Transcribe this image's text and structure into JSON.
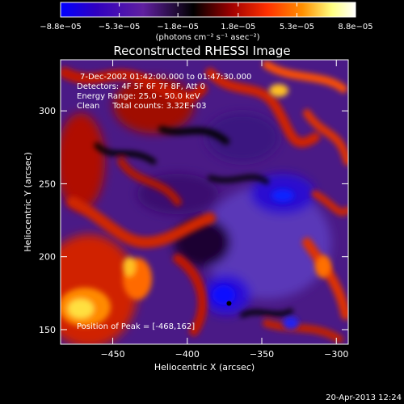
{
  "chart_data": {
    "type": "heatmap",
    "title": "Reconstructed RHESSI Image",
    "xlabel": "Heliocentric X (arcsec)",
    "ylabel": "Heliocentric Y (arcsec)",
    "xlim": [
      -485,
      -292
    ],
    "ylim": [
      140,
      335
    ],
    "x_ticks": [
      -450,
      -400,
      -350,
      -300
    ],
    "y_ticks": [
      150,
      200,
      250,
      300
    ],
    "x_tick_labels": [
      "−450",
      "−400",
      "−350",
      "−300"
    ],
    "y_tick_labels": [
      "150",
      "200",
      "250",
      "300"
    ],
    "colorbar": {
      "min": -8.8e-05,
      "max": 8.8e-05,
      "ticks": [
        -8.8e-05,
        -5.3e-05,
        -1.8e-05,
        1.8e-05,
        5.3e-05,
        8.8e-05
      ],
      "tick_labels": [
        "−8.8e−05",
        "−5.3e−05",
        "−1.8e−05",
        "1.8e−05",
        "5.3e−05",
        "8.8e−05"
      ],
      "units": "(photons cm⁻² s⁻¹ asec⁻²)",
      "colors": [
        "#0000ff",
        "#3000c0",
        "#6020a0",
        "#000000",
        "#a00000",
        "#ff3000",
        "#ff9000",
        "#ffff80",
        "#ffffff"
      ]
    },
    "annotations": {
      "time_range": "7-Dec-2002 01:42:00.000 to 01:47:30.000",
      "detectors": "Detectors: 4F 5F 6F 7F 8F, Att 0",
      "energy_range": "Energy Range: 25.0 - 50.0 keV",
      "clean_line": "Clean     Total counts: 3.32E+03",
      "peak_position": "Position of Peak = [-468,162]"
    },
    "peak": [
      -468,
      162
    ],
    "marker": [
      -372,
      168
    ]
  },
  "footer": {
    "date_stamp": "20-Apr-2013 12:24"
  }
}
